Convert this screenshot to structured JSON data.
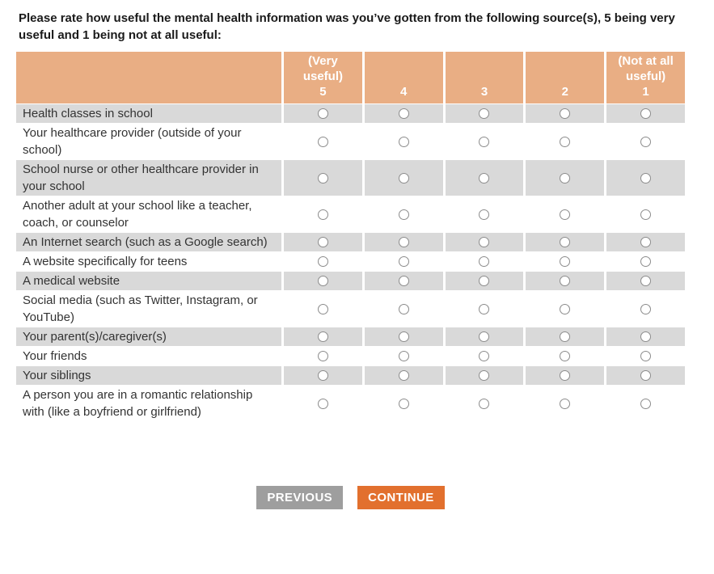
{
  "question": {
    "title": "Please rate how useful the mental health information was you’ve gotten from the following source(s), 5 being very useful and 1 being not at all useful:"
  },
  "table": {
    "columns": [
      {
        "label": "(Very useful)",
        "value": "5"
      },
      {
        "label": "",
        "value": "4"
      },
      {
        "label": "",
        "value": "3"
      },
      {
        "label": "",
        "value": "2"
      },
      {
        "label": "(Not at all useful)",
        "value": "1"
      }
    ],
    "rows": [
      {
        "label": "Health classes in school",
        "selected": null
      },
      {
        "label": "Your healthcare provider (outside of your school)",
        "selected": null
      },
      {
        "label": "School nurse or other healthcare provider in your school",
        "selected": null
      },
      {
        "label": "Another adult at your school like a teacher, coach, or counselor",
        "selected": null
      },
      {
        "label": "An Internet search (such as a Google search)",
        "selected": null
      },
      {
        "label": "A website specifically for teens",
        "selected": null
      },
      {
        "label": "A medical website",
        "selected": null
      },
      {
        "label": "Social media (such as Twitter, Instagram, or YouTube)",
        "selected": null
      },
      {
        "label": "Your parent(s)/caregiver(s)",
        "selected": null
      },
      {
        "label": "Your friends",
        "selected": null
      },
      {
        "label": "Your siblings",
        "selected": null
      },
      {
        "label": "A person you are in a romantic relationship with (like a boyfriend or girlfriend)",
        "selected": null
      }
    ]
  },
  "actions": {
    "previous": "PREVIOUS",
    "continue": "CONTINUE"
  },
  "colors": {
    "header_bg": "#E9AE84",
    "header_text": "#FFFFFF",
    "row_alt_bg": "#D9D9D9",
    "row_bg": "#FFFFFF",
    "body_text": "#333333",
    "previous_bg": "#9E9E9E",
    "continue_bg": "#E2702E"
  }
}
